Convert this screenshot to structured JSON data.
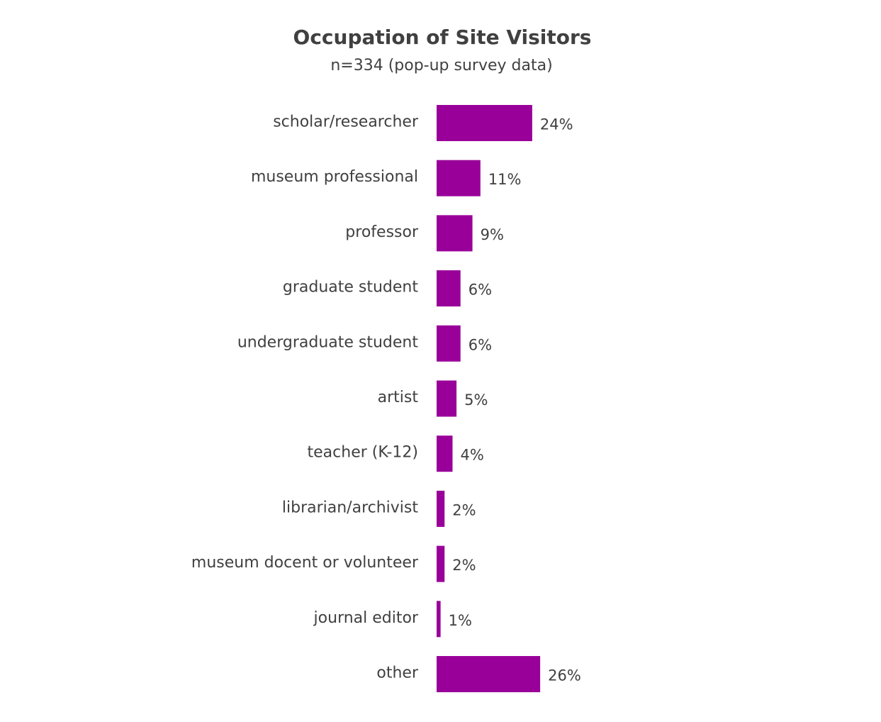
{
  "chart_data": {
    "type": "bar",
    "orientation": "horizontal",
    "title": "Occupation of Site Visitors",
    "subtitle": "n=334 (pop-up survey data)",
    "categories": [
      "scholar/researcher",
      "museum professional",
      "professor",
      "graduate student",
      "undergraduate student",
      "artist",
      "teacher (K-12)",
      "librarian/archivist",
      "museum docent or volunteer",
      "journal editor",
      "other"
    ],
    "values": [
      24,
      11,
      9,
      6,
      6,
      5,
      4,
      2,
      2,
      1,
      26
    ],
    "labels": [
      "24%",
      "11%",
      "9%",
      "6%",
      "6%",
      "5%",
      "4%",
      "2%",
      "2%",
      "1%",
      "26%"
    ],
    "unit": "%",
    "bar_color": "#990099",
    "text_color": "#404040",
    "grid": false,
    "legend": "none"
  }
}
